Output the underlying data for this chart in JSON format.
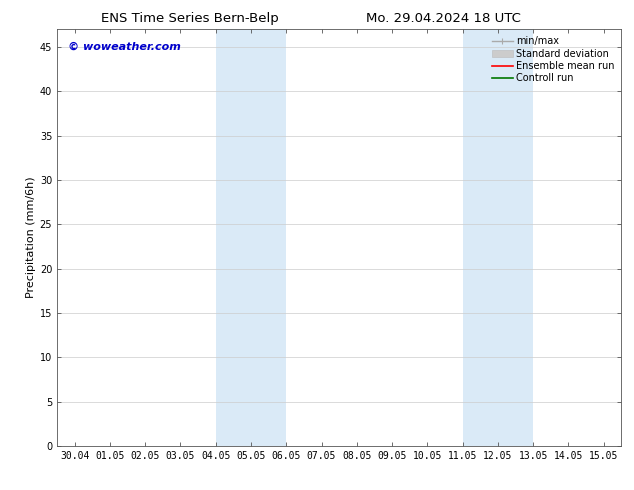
{
  "title_left": "ENS Time Series Bern-Belp",
  "title_right": "Mo. 29.04.2024 18 UTC",
  "ylabel": "Precipitation (mm/6h)",
  "watermark": "© woweather.com",
  "watermark_color": "#0000cc",
  "ylim": [
    0,
    47
  ],
  "yticks": [
    0,
    5,
    10,
    15,
    20,
    25,
    30,
    35,
    40,
    45
  ],
  "xtick_labels": [
    "30.04",
    "01.05",
    "02.05",
    "03.05",
    "04.05",
    "05.05",
    "06.05",
    "07.05",
    "08.05",
    "09.05",
    "10.05",
    "11.05",
    "12.05",
    "13.05",
    "14.05",
    "15.05"
  ],
  "shaded_regions": [
    {
      "xstart": 4.0,
      "xend": 6.0,
      "color": "#daeaf7"
    },
    {
      "xstart": 11.0,
      "xend": 13.0,
      "color": "#daeaf7"
    }
  ],
  "legend_entries": [
    {
      "label": "min/max",
      "color": "#aaaaaa",
      "lw": 1.0,
      "style": "minmax"
    },
    {
      "label": "Standard deviation",
      "color": "#cccccc",
      "lw": 5,
      "style": "thick"
    },
    {
      "label": "Ensemble mean run",
      "color": "#ff0000",
      "lw": 1.2,
      "style": "line"
    },
    {
      "label": "Controll run",
      "color": "#007700",
      "lw": 1.2,
      "style": "line"
    }
  ],
  "background_color": "#ffffff",
  "plot_bg_color": "#ffffff",
  "grid_color": "#cccccc",
  "title_fontsize": 9.5,
  "tick_fontsize": 7,
  "ylabel_fontsize": 8,
  "watermark_fontsize": 8,
  "legend_fontsize": 7
}
